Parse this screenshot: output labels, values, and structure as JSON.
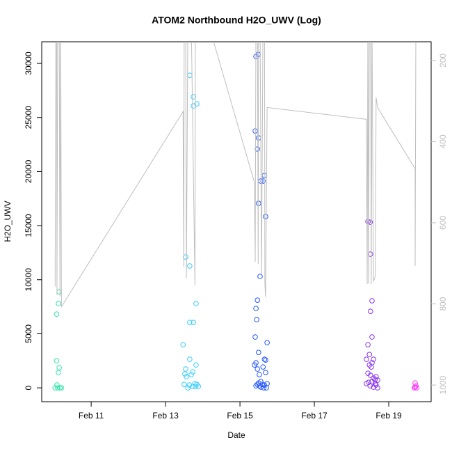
{
  "chart_data": {
    "type": "scatter",
    "title": "ATOM2 Northbound H2O_UWV (Log)",
    "x_label": "Date",
    "y_label": "H2O_UWV",
    "xlim": [
      9.67,
      20.14
    ],
    "xticks": [
      {
        "value": 11,
        "label": "Feb 11"
      },
      {
        "value": 13,
        "label": "Feb 13"
      },
      {
        "value": 15,
        "label": "Feb 15"
      },
      {
        "value": 17,
        "label": "Feb 17"
      },
      {
        "value": 19,
        "label": "Feb 19"
      }
    ],
    "ylim": [
      -1280,
      32000
    ],
    "yticks": [
      0,
      5000,
      10000,
      15000,
      20000,
      25000,
      30000
    ],
    "y2lim": [
      1041,
      154
    ],
    "y2ticks": [
      200,
      400,
      600,
      800,
      1000
    ],
    "y2_color": "#bebebe",
    "series": [
      {
        "color": "#2ee6aa",
        "x": [
          10.14,
          10.12,
          10.07,
          10.07,
          10.14,
          10.12,
          10.08,
          10.03,
          10.1,
          10.16,
          10.2
        ],
        "values": [
          8880,
          7790,
          6820,
          2510,
          1870,
          1420,
          260,
          0,
          0,
          0,
          0
        ]
      },
      {
        "color": "#33ccff",
        "x": [
          13.65,
          13.75,
          13.75,
          13.84,
          13.54,
          13.65,
          13.82,
          13.65,
          13.75,
          13.47,
          13.65,
          13.82,
          13.54,
          13.52,
          13.73,
          13.56,
          13.69,
          13.79,
          13.5,
          13.64,
          13.73,
          13.84,
          13.6,
          13.88,
          13.8
        ],
        "values": [
          28900,
          26910,
          26070,
          26260,
          12100,
          11270,
          7790,
          6050,
          6050,
          3990,
          2640,
          2120,
          1740,
          1290,
          1480,
          1030,
          1220,
          390,
          320,
          260,
          130,
          320,
          0,
          130,
          130
        ]
      },
      {
        "color": "#2255ff",
        "x": [
          15.43,
          15.49,
          15.41,
          15.5,
          15.47,
          15.56,
          15.62,
          15.66,
          15.5,
          15.69,
          15.54,
          15.47,
          15.43,
          15.45,
          15.41,
          15.73,
          15.5,
          15.66,
          15.69,
          15.43,
          15.39,
          15.62,
          15.47,
          15.52,
          15.69,
          15.56,
          15.5,
          15.47,
          15.6,
          15.66,
          15.73,
          15.43,
          15.56,
          15.64,
          15.71,
          15.52
        ],
        "values": [
          30640,
          30830,
          23750,
          23110,
          22080,
          19120,
          19120,
          19630,
          17060,
          15840,
          10300,
          8110,
          7340,
          6310,
          4700,
          4180,
          3280,
          2640,
          2570,
          2320,
          2120,
          1930,
          1740,
          1220,
          1420,
          580,
          450,
          320,
          320,
          260,
          390,
          190,
          64,
          0,
          0,
          190
        ]
      },
      {
        "color": "#8833ee",
        "x": [
          18.44,
          18.5,
          18.51,
          18.55,
          18.51,
          18.55,
          18.44,
          18.48,
          18.4,
          18.59,
          18.55,
          18.48,
          18.53,
          18.66,
          18.44,
          18.51,
          18.59,
          18.63,
          18.55,
          18.46,
          18.7,
          18.4,
          18.64,
          18.5,
          18.59,
          18.7,
          18.66
        ],
        "values": [
          15380,
          15320,
          12360,
          8050,
          7080,
          4700,
          3990,
          3090,
          2640,
          2640,
          2320,
          2120,
          1930,
          1030,
          1350,
          1160,
          900,
          770,
          580,
          510,
          710,
          390,
          390,
          190,
          64,
          0,
          260
        ]
      },
      {
        "color": "#ff33ff",
        "x": [
          19.71,
          19.73,
          19.69,
          19.75,
          19.71
        ],
        "values": [
          450,
          190,
          0,
          0,
          64
        ]
      },
      {
        "type": "line",
        "axis": "y2",
        "color": "#bebebe",
        "x": [
          10.03,
          10.05,
          10.07,
          10.08,
          10.1,
          10.14,
          10.16,
          10.18,
          10.2,
          13.47,
          13.49,
          13.5,
          13.54,
          13.56,
          13.6,
          13.64,
          13.65,
          13.69,
          13.79,
          13.8,
          13.84,
          13.88,
          15.39,
          15.41,
          15.43,
          15.47,
          15.49,
          15.5,
          15.54,
          15.58,
          15.62,
          15.66,
          15.67,
          15.69,
          15.73,
          18.4,
          18.42,
          18.44,
          18.46,
          18.48,
          18.51,
          18.53,
          18.55,
          18.59,
          18.64,
          18.66,
          18.7,
          19.71,
          19.71,
          19.73
        ],
        "values": [
          757,
          100,
          100,
          778,
          100,
          100,
          781,
          100,
          807,
          326,
          709,
          100,
          100,
          737,
          100,
          100,
          100,
          100,
          754,
          100,
          100,
          24,
          501,
          696,
          100,
          100,
          701,
          100,
          100,
          725,
          100,
          100,
          752,
          783,
          316,
          345,
          751,
          100,
          750,
          100,
          100,
          751,
          100,
          745,
          731,
          291,
          316,
          467,
          706,
          100
        ]
      }
    ]
  }
}
